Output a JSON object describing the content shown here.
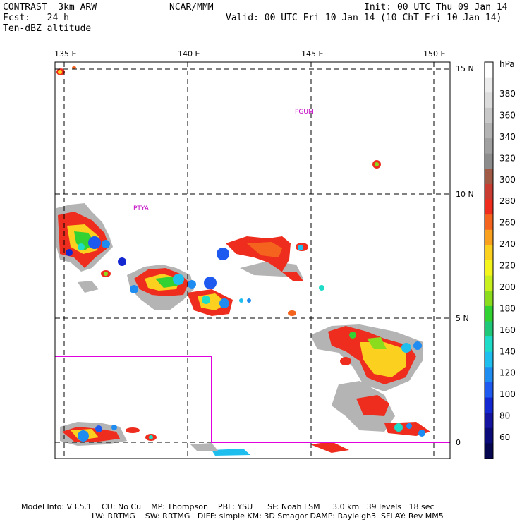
{
  "header": {
    "model": "CONTRAST  3km ARW",
    "forecast": "Fcst:   24 h",
    "field": "Ten-dBZ altitude",
    "center": "NCAR/MMM",
    "init": "Init: 00 UTC Thu 09 Jan 14",
    "valid": "Valid: 00 UTC Fri 10 Jan 14 (10 ChT Fri 10 Jan 14)"
  },
  "axes": {
    "lon_labels": [
      "135 E",
      "140 E",
      "145 E",
      "150 E"
    ],
    "lat_labels": [
      "15 N",
      "10 N",
      "5 N",
      "0"
    ]
  },
  "stations": [
    "PTYA",
    "PGUM"
  ],
  "colorbar": {
    "unit": "hPa",
    "labels": [
      "380",
      "360",
      "340",
      "320",
      "300",
      "280",
      "260",
      "240",
      "220",
      "200",
      "180",
      "160",
      "140",
      "120",
      "100",
      "80",
      "60"
    ],
    "colors": [
      "#ffffff",
      "#ececec",
      "#dcdcdc",
      "#c8c8c8",
      "#b4b4b4",
      "#a0a0a0",
      "#8c8c8c",
      "#a05a46",
      "#c83c32",
      "#ee2d1e",
      "#f5641e",
      "#f9a01e",
      "#fcd01e",
      "#f5f51e",
      "#c8f01e",
      "#8cdc1e",
      "#32d232",
      "#1ec878",
      "#1edcc8",
      "#1ebeee",
      "#1e8cf0",
      "#1e5af0",
      "#1428d2",
      "#1414a0",
      "#0a0a78",
      "#050550"
    ]
  },
  "footer": {
    "line1": "Model Info: V3.5.1    CU: No Cu    MP: Thompson    PBL: YSU      SF: Noah LSM     3.0 km   39 levels   18 sec",
    "line2": "LW: RRTMG    SW: RRTMG   DIFF: simple KM: 3D Smagor DAMP: Rayleigh3  SFLAY: Rev MM5"
  }
}
